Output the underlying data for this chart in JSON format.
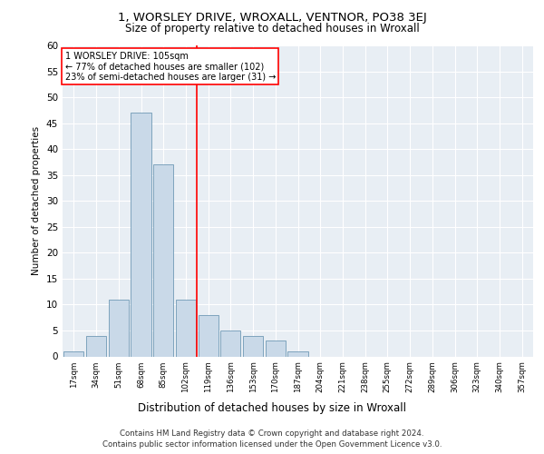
{
  "title1": "1, WORSLEY DRIVE, WROXALL, VENTNOR, PO38 3EJ",
  "title2": "Size of property relative to detached houses in Wroxall",
  "xlabel": "Distribution of detached houses by size in Wroxall",
  "ylabel": "Number of detached properties",
  "categories": [
    "17sqm",
    "34sqm",
    "51sqm",
    "68sqm",
    "85sqm",
    "102sqm",
    "119sqm",
    "136sqm",
    "153sqm",
    "170sqm",
    "187sqm",
    "204sqm",
    "221sqm",
    "238sqm",
    "255sqm",
    "272sqm",
    "289sqm",
    "306sqm",
    "323sqm",
    "340sqm",
    "357sqm"
  ],
  "values": [
    1,
    4,
    11,
    47,
    37,
    11,
    8,
    5,
    4,
    3,
    1,
    0,
    0,
    0,
    0,
    0,
    0,
    0,
    0,
    0,
    0
  ],
  "bar_color": "#c9d9e8",
  "bar_edge_color": "#5a8aaa",
  "vline_x": 5.5,
  "vline_color": "red",
  "annotation_title": "1 WORSLEY DRIVE: 105sqm",
  "annotation_line1": "← 77% of detached houses are smaller (102)",
  "annotation_line2": "23% of semi-detached houses are larger (31) →",
  "annotation_box_color": "white",
  "annotation_box_edge": "red",
  "ylim": [
    0,
    60
  ],
  "yticks": [
    0,
    5,
    10,
    15,
    20,
    25,
    30,
    35,
    40,
    45,
    50,
    55,
    60
  ],
  "footer1": "Contains HM Land Registry data © Crown copyright and database right 2024.",
  "footer2": "Contains public sector information licensed under the Open Government Licence v3.0.",
  "plot_bg_color": "#e8eef4"
}
